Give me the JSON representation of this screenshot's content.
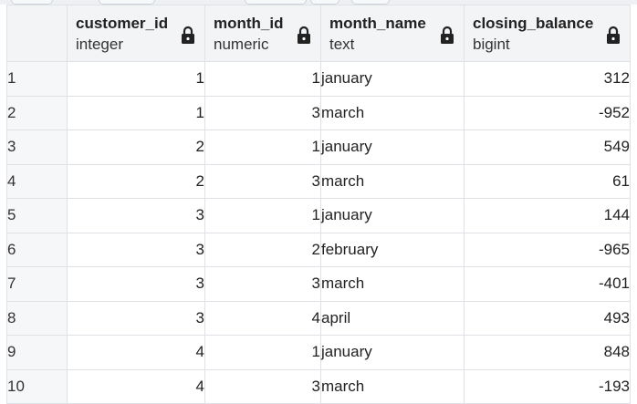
{
  "columns": [
    {
      "name": "customer_id",
      "type": "integer",
      "icon": "lock-icon"
    },
    {
      "name": "month_id",
      "type": "numeric",
      "icon": "lock-icon"
    },
    {
      "name": "month_name",
      "type": "text",
      "icon": "lock-icon"
    },
    {
      "name": "closing_balance",
      "type": "bigint",
      "icon": "lock-icon"
    }
  ],
  "rows": [
    {
      "row": "1",
      "customer_id": "1",
      "month_id": "1",
      "month_name": "january",
      "closing_balance": "312"
    },
    {
      "row": "2",
      "customer_id": "1",
      "month_id": "3",
      "month_name": "march",
      "closing_balance": "-952"
    },
    {
      "row": "3",
      "customer_id": "2",
      "month_id": "1",
      "month_name": "january",
      "closing_balance": "549"
    },
    {
      "row": "4",
      "customer_id": "2",
      "month_id": "3",
      "month_name": "march",
      "closing_balance": "61"
    },
    {
      "row": "5",
      "customer_id": "3",
      "month_id": "1",
      "month_name": "january",
      "closing_balance": "144"
    },
    {
      "row": "6",
      "customer_id": "3",
      "month_id": "2",
      "month_name": "february",
      "closing_balance": "-965"
    },
    {
      "row": "7",
      "customer_id": "3",
      "month_id": "3",
      "month_name": "march",
      "closing_balance": "-401"
    },
    {
      "row": "8",
      "customer_id": "3",
      "month_id": "4",
      "month_name": "april",
      "closing_balance": "493"
    },
    {
      "row": "9",
      "customer_id": "4",
      "month_id": "1",
      "month_name": "january",
      "closing_balance": "848"
    },
    {
      "row": "10",
      "customer_id": "4",
      "month_id": "3",
      "month_name": "march",
      "closing_balance": "-193"
    }
  ]
}
